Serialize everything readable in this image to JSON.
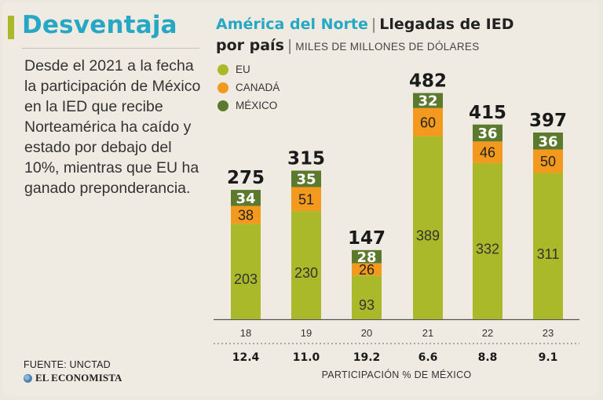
{
  "sidebar": {
    "headline": "Desventaja",
    "body": "Desde el 2021 a la fecha la participación de México en la IED que recibe Norteamérica ha caído y estado por debajo del 10%, mientras que EU ha ganado preponderancia.",
    "source": "FUENTE: UNCTAD",
    "brand": "EL ECONOMISTA"
  },
  "colors": {
    "accent": "#a9b92a",
    "title_blue": "#26a8c4",
    "eu": "#a9b92a",
    "canada": "#f39a1e",
    "mexico": "#5c7a2e"
  },
  "chart_data": {
    "type": "bar",
    "stacked": true,
    "title_region": "América del Norte",
    "title_separator": "|",
    "title_main_1": "Llegadas de IED",
    "title_main_2": "por país",
    "units": "MILES DE MILLONES DE DÓLARES",
    "legend_position": "top-left",
    "categories": [
      "18",
      "19",
      "20",
      "21",
      "22",
      "23"
    ],
    "series": [
      {
        "name": "EU",
        "color": "#a9b92a",
        "values": [
          203,
          230,
          93,
          389,
          332,
          311
        ]
      },
      {
        "name": "CANADÁ",
        "color": "#f39a1e",
        "values": [
          38,
          51,
          26,
          60,
          46,
          50
        ]
      },
      {
        "name": "MÉXICO",
        "color": "#5c7a2e",
        "values": [
          34,
          35,
          28,
          32,
          36,
          36
        ]
      }
    ],
    "totals": [
      275,
      315,
      147,
      482,
      415,
      397
    ],
    "mexico_share": [
      "12.4",
      "11.0",
      "19.2",
      "6.6",
      "8.8",
      "9.1"
    ],
    "mexico_share_label": "PARTICIPACIÓN % DE MÉXICO",
    "ylim": [
      0,
      482
    ],
    "grid": false
  }
}
